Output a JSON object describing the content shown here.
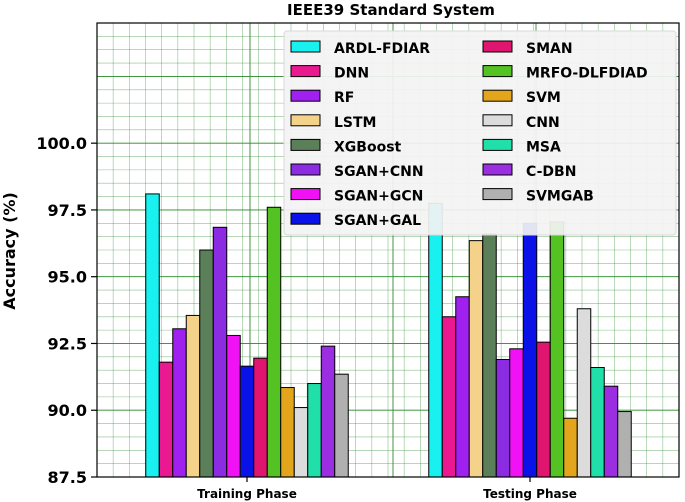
{
  "chart_data": {
    "type": "bar",
    "title": "IEEE39 Standard System",
    "xlabel": "",
    "ylabel": "Accuracy (%)",
    "ylim": [
      87.5,
      104.5
    ],
    "yticks": [
      "87.5",
      "90.0",
      "92.5",
      "95.0",
      "97.5",
      "100.0"
    ],
    "categories": [
      "Training Phase",
      "Testing Phase"
    ],
    "grid": true,
    "legend_position": "top-right",
    "series": [
      {
        "name": "ARDL-FDIAR",
        "color": "#19f0f0",
        "values": [
          98.1,
          97.75
        ]
      },
      {
        "name": "DNN",
        "color": "#ea1990",
        "values": [
          91.8,
          93.5
        ]
      },
      {
        "name": "RF",
        "color": "#a020f0",
        "values": [
          93.05,
          94.25
        ]
      },
      {
        "name": "LSTM",
        "color": "#f5d28a",
        "values": [
          93.55,
          96.35
        ]
      },
      {
        "name": "XGBoost",
        "color": "#5b7f59",
        "values": [
          96.0,
          96.6
        ]
      },
      {
        "name": "SGAN+CNN",
        "color": "#8b2be2",
        "values": [
          96.85,
          91.9
        ]
      },
      {
        "name": "SGAN+GCN",
        "color": "#f012f5",
        "values": [
          92.8,
          92.3
        ]
      },
      {
        "name": "SGAN+GAL",
        "color": "#0b12e8",
        "values": [
          91.65,
          97.0
        ]
      },
      {
        "name": "SMAN",
        "color": "#e0156f",
        "values": [
          91.95,
          92.55
        ]
      },
      {
        "name": "MRFO-DLFDIAD",
        "color": "#55c224",
        "values": [
          97.6,
          97.05
        ]
      },
      {
        "name": "SVM",
        "color": "#e2a51c",
        "values": [
          90.85,
          89.7
        ]
      },
      {
        "name": "CNN",
        "color": "#dcdcdc",
        "values": [
          90.1,
          93.8
        ]
      },
      {
        "name": "MSA",
        "color": "#20dfa9",
        "values": [
          91.0,
          91.6
        ]
      },
      {
        "name": "C-DBN",
        "color": "#9a2ee0",
        "values": [
          92.4,
          90.9
        ]
      },
      {
        "name": "SVMGAB",
        "color": "#b0b0b0",
        "values": [
          91.35,
          89.95
        ]
      }
    ]
  }
}
